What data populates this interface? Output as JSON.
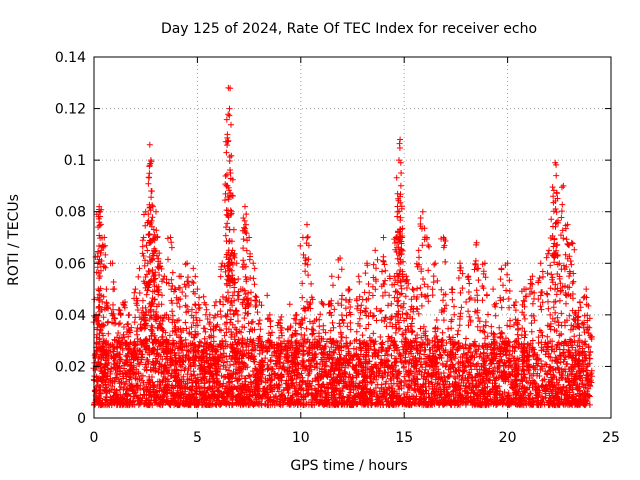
{
  "chart_data": {
    "type": "scatter",
    "title": "Day 125 of 2024, Rate Of TEC Index for receiver echo",
    "xlabel": "GPS time / hours",
    "ylabel": "ROTI / TECUs",
    "xlim": [
      0,
      25
    ],
    "ylim": [
      0,
      0.14
    ],
    "xticks": [
      0,
      5,
      10,
      15,
      20,
      25
    ],
    "xtick_labels": [
      "0",
      "5",
      "10",
      "15",
      "20",
      "25"
    ],
    "yticks": [
      0,
      0.02,
      0.04,
      0.06,
      0.08,
      0.1,
      0.12,
      0.14
    ],
    "ytick_labels": [
      "0",
      "0.02",
      "0.04",
      "0.06",
      "0.08",
      "0.1",
      "0.12",
      "0.14"
    ],
    "grid": true,
    "marker": "+",
    "marker_color": "#ff0000",
    "series": [
      {
        "name": "ROTI",
        "color": "#ff0000",
        "x_range": [
          0,
          24
        ],
        "baseline_range": [
          0.005,
          0.03
        ],
        "points": [
          [
            0.1,
            0.04
          ],
          [
            0.2,
            0.064
          ],
          [
            0.25,
            0.082
          ],
          [
            0.3,
            0.08
          ],
          [
            0.35,
            0.065
          ],
          [
            0.5,
            0.07
          ],
          [
            0.6,
            0.05
          ],
          [
            0.9,
            0.06
          ],
          [
            1.2,
            0.042
          ],
          [
            1.5,
            0.045
          ],
          [
            1.7,
            0.04
          ],
          [
            2.0,
            0.05
          ],
          [
            2.2,
            0.058
          ],
          [
            2.4,
            0.07
          ],
          [
            2.5,
            0.08
          ],
          [
            2.6,
            0.06
          ],
          [
            2.7,
            0.106
          ],
          [
            2.75,
            0.1
          ],
          [
            2.8,
            0.088
          ],
          [
            2.85,
            0.082
          ],
          [
            2.9,
            0.065
          ],
          [
            3.0,
            0.08
          ],
          [
            3.05,
            0.07
          ],
          [
            3.2,
            0.06
          ],
          [
            3.4,
            0.055
          ],
          [
            3.7,
            0.07
          ],
          [
            3.9,
            0.05
          ],
          [
            4.2,
            0.055
          ],
          [
            4.5,
            0.06
          ],
          [
            4.8,
            0.058
          ],
          [
            5.0,
            0.05
          ],
          [
            5.3,
            0.047
          ],
          [
            5.6,
            0.04
          ],
          [
            5.9,
            0.045
          ],
          [
            6.2,
            0.06
          ],
          [
            6.4,
            0.09
          ],
          [
            6.45,
            0.11
          ],
          [
            6.5,
            0.128
          ],
          [
            6.55,
            0.12
          ],
          [
            6.6,
            0.095
          ],
          [
            6.65,
            0.08
          ],
          [
            6.7,
            0.065
          ],
          [
            6.9,
            0.06
          ],
          [
            7.1,
            0.05
          ],
          [
            7.3,
            0.082
          ],
          [
            7.35,
            0.075
          ],
          [
            7.5,
            0.07
          ],
          [
            7.7,
            0.06
          ],
          [
            8.0,
            0.045
          ],
          [
            8.5,
            0.04
          ],
          [
            9.0,
            0.038
          ],
          [
            9.5,
            0.035
          ],
          [
            9.8,
            0.04
          ],
          [
            10.1,
            0.07
          ],
          [
            10.3,
            0.075
          ],
          [
            10.5,
            0.052
          ],
          [
            11.0,
            0.045
          ],
          [
            11.5,
            0.055
          ],
          [
            11.9,
            0.062
          ],
          [
            12.3,
            0.05
          ],
          [
            12.8,
            0.055
          ],
          [
            13.2,
            0.06
          ],
          [
            13.6,
            0.065
          ],
          [
            14.0,
            0.07
          ],
          [
            14.3,
            0.055
          ],
          [
            14.6,
            0.07
          ],
          [
            14.7,
            0.085
          ],
          [
            14.75,
            0.1
          ],
          [
            14.8,
            0.108
          ],
          [
            14.85,
            0.095
          ],
          [
            14.9,
            0.07
          ],
          [
            15.1,
            0.055
          ],
          [
            15.4,
            0.05
          ],
          [
            15.7,
            0.065
          ],
          [
            15.9,
            0.08
          ],
          [
            16.1,
            0.07
          ],
          [
            16.5,
            0.06
          ],
          [
            16.9,
            0.07
          ],
          [
            17.3,
            0.05
          ],
          [
            17.7,
            0.06
          ],
          [
            18.1,
            0.055
          ],
          [
            18.5,
            0.068
          ],
          [
            18.9,
            0.06
          ],
          [
            19.3,
            0.05
          ],
          [
            19.7,
            0.058
          ],
          [
            20.0,
            0.06
          ],
          [
            20.4,
            0.045
          ],
          [
            20.8,
            0.05
          ],
          [
            21.2,
            0.055
          ],
          [
            21.6,
            0.06
          ],
          [
            22.0,
            0.065
          ],
          [
            22.2,
            0.086
          ],
          [
            22.3,
            0.099
          ],
          [
            22.35,
            0.094
          ],
          [
            22.5,
            0.06
          ],
          [
            22.7,
            0.09
          ],
          [
            22.9,
            0.075
          ],
          [
            23.1,
            0.068
          ],
          [
            23.3,
            0.04
          ],
          [
            23.5,
            0.045
          ],
          [
            23.8,
            0.05
          ],
          [
            23.95,
            0.035
          ]
        ]
      }
    ]
  }
}
